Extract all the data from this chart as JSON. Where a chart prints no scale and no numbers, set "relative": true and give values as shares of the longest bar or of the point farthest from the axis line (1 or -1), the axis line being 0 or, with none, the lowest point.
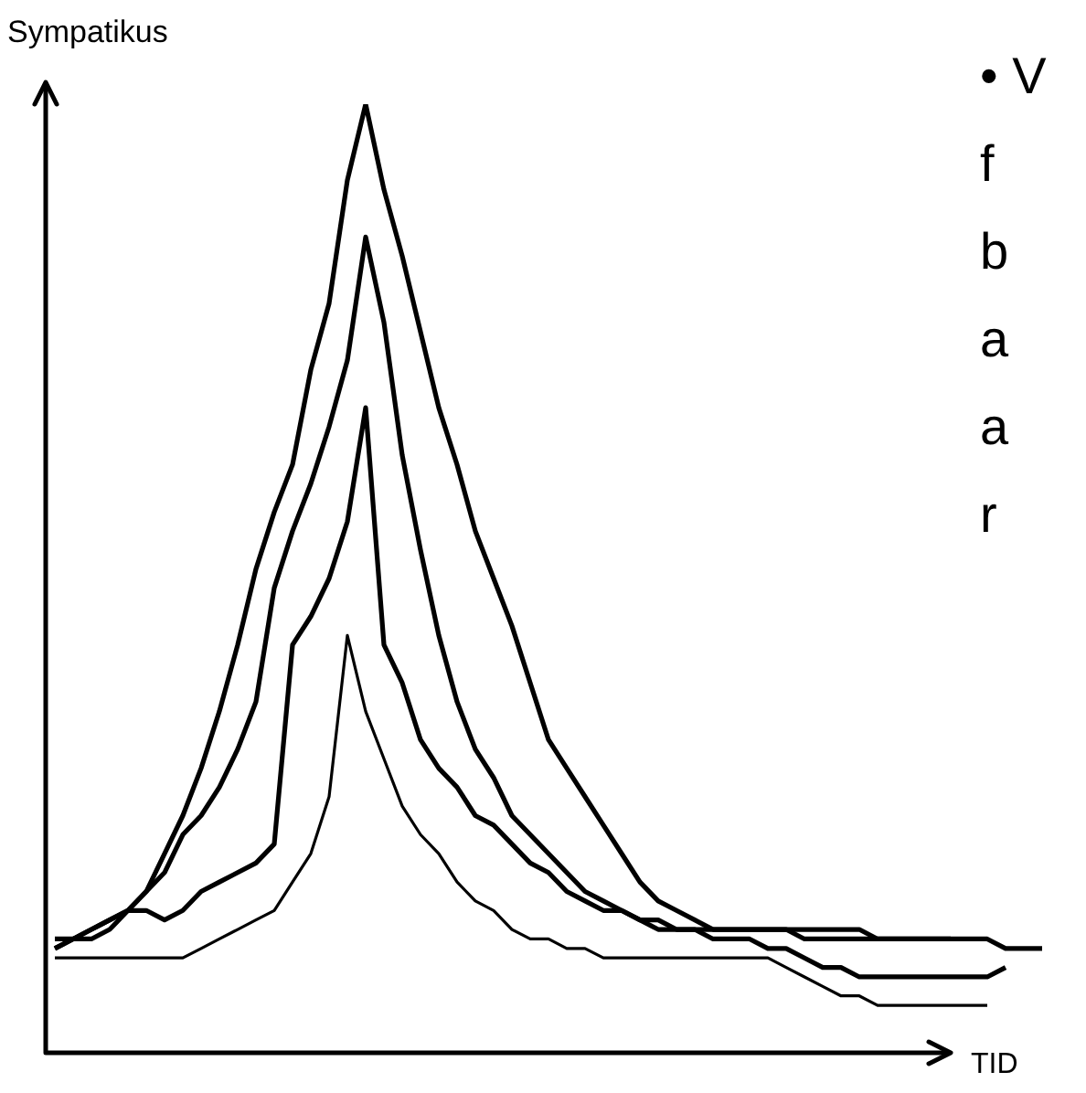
{
  "chart_data": {
    "type": "line",
    "relative": true,
    "xlabel": "TID",
    "ylabel": "Sympatikus",
    "annotations": [
      "• V",
      "f",
      "b",
      "a",
      "a",
      "r"
    ],
    "categories": [
      null,
      null,
      null,
      null,
      null,
      null,
      null,
      null,
      null,
      null,
      null,
      null,
      null,
      null,
      null,
      null,
      null,
      null,
      null,
      null,
      null,
      null,
      null,
      null,
      null,
      null,
      null,
      null,
      null,
      null,
      null,
      null,
      null,
      null,
      null,
      null,
      null,
      null,
      null,
      null,
      null,
      null,
      null,
      null,
      null,
      null,
      null,
      null,
      null,
      null,
      null,
      null,
      null,
      null,
      null
    ],
    "series": [
      {
        "color": "#000000",
        "values": [
          0.12,
          0.12,
          0.13,
          0.14,
          0.15,
          0.17,
          0.21,
          0.25,
          0.3,
          0.36,
          0.43,
          0.51,
          0.57,
          0.62,
          0.72,
          0.79,
          0.92,
          1,
          0.91,
          0.84,
          0.76,
          0.68,
          0.62,
          0.55,
          0.5,
          0.45,
          0.39,
          0.33,
          0.3,
          0.27,
          0.24,
          0.21,
          0.18,
          0.16,
          0.15,
          0.14,
          0.13,
          0.13,
          0.13,
          0.13,
          0.13,
          0.12,
          0.12,
          0.12,
          0.12,
          0.12,
          0.12,
          0.12,
          0.12,
          0.12,
          null,
          null,
          null,
          null,
          null
        ]
      },
      {
        "color": "#000000",
        "values": [
          0.11,
          0.12,
          0.13,
          0.14,
          0.15,
          0.17,
          0.19,
          0.23,
          0.25,
          0.28,
          0.32,
          0.37,
          0.49,
          0.55,
          0.6,
          0.66,
          0.73,
          0.86,
          0.77,
          0.63,
          0.53,
          0.44,
          0.37,
          0.32,
          0.29,
          0.25,
          0.23,
          0.21,
          0.19,
          0.17,
          0.16,
          0.15,
          0.14,
          0.14,
          0.13,
          0.13,
          0.13,
          0.13,
          0.13,
          0.13,
          0.13,
          0.13,
          0.13,
          0.13,
          0.13,
          0.12,
          0.12,
          0.12,
          0.12,
          0.12,
          0.12,
          0.12,
          0.11,
          0.11,
          0.11
        ]
      },
      {
        "color": "#000000",
        "values": [
          0.11,
          0.12,
          0.12,
          0.13,
          0.15,
          0.15,
          0.14,
          0.15,
          0.17,
          0.18,
          0.19,
          0.2,
          0.22,
          0.43,
          0.46,
          0.5,
          0.56,
          0.68,
          0.43,
          0.39,
          0.33,
          0.3,
          0.28,
          0.25,
          0.24,
          0.22,
          0.2,
          0.19,
          0.17,
          0.16,
          0.15,
          0.15,
          0.14,
          0.13,
          0.13,
          0.13,
          0.12,
          0.12,
          0.12,
          0.11,
          0.11,
          0.1,
          0.09,
          0.09,
          0.08,
          0.08,
          0.08,
          0.08,
          0.08,
          0.08,
          0.08,
          0.08,
          0.09,
          null,
          null
        ]
      },
      {
        "color": "#000000",
        "values": [
          0.1,
          0.1,
          0.1,
          0.1,
          0.1,
          0.1,
          0.1,
          0.1,
          0.11,
          0.12,
          0.13,
          0.14,
          0.15,
          0.18,
          0.21,
          0.27,
          0.44,
          0.36,
          0.31,
          0.26,
          0.23,
          0.21,
          0.18,
          0.16,
          0.15,
          0.13,
          0.12,
          0.12,
          0.11,
          0.11,
          0.1,
          0.1,
          0.1,
          0.1,
          0.1,
          0.1,
          0.1,
          0.1,
          0.1,
          0.1,
          0.09,
          0.08,
          0.07,
          0.06,
          0.06,
          0.05,
          0.05,
          0.05,
          0.05,
          0.05,
          0.05,
          0.05,
          null,
          null,
          null
        ]
      }
    ]
  }
}
